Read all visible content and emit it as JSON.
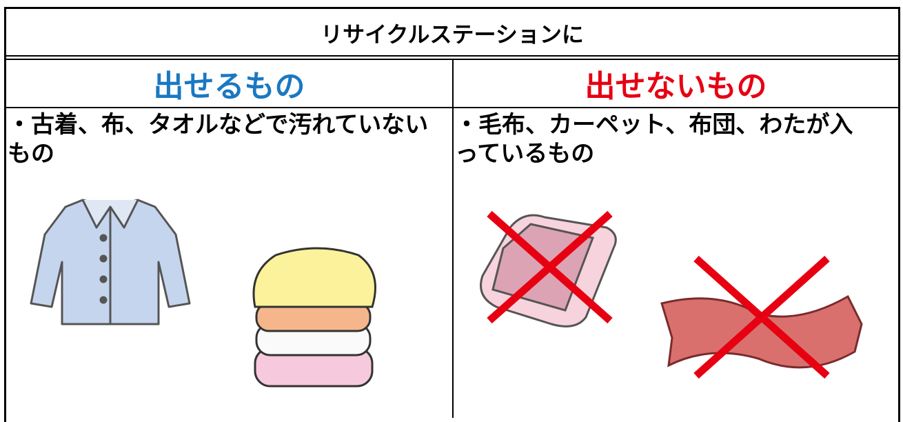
{
  "header": {
    "title": "リサイクルステーションに"
  },
  "columns": [
    {
      "heading": "出せるもの",
      "description": "・古着、布、タオルなどで汚れていないもの"
    },
    {
      "heading": "出せないもの",
      "description": "・毛布、カーペット、布団、わたが入っているもの"
    }
  ]
}
